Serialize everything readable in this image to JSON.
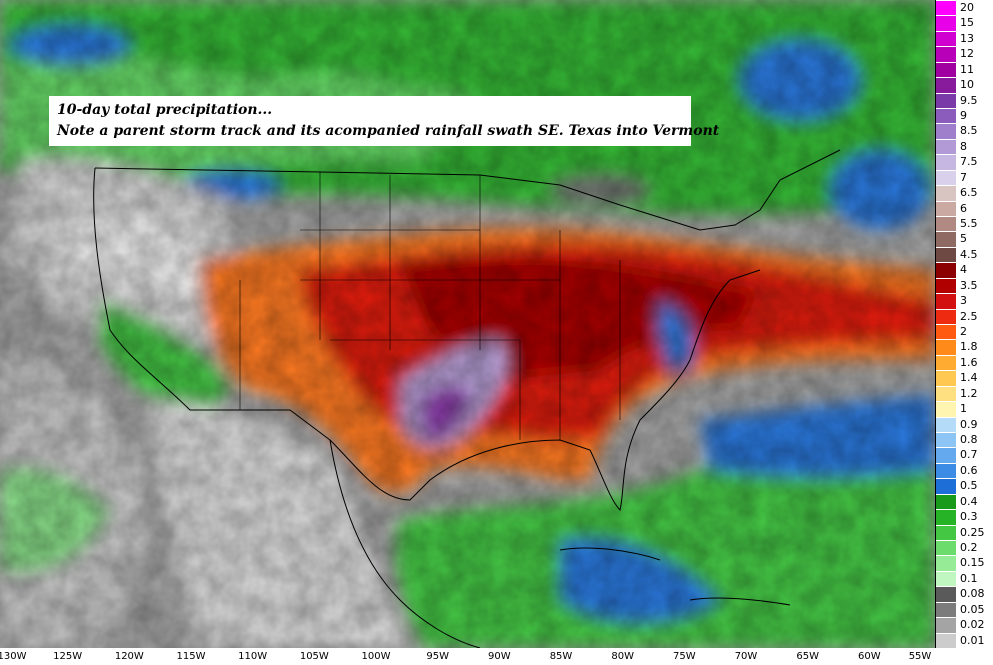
{
  "annotation": {
    "line1": "10-day total precipitation...",
    "line2": "Note a parent storm track and its acompanied rainfall swath SE. Texas into Vermont"
  },
  "colorbar": {
    "levels": [
      {
        "label": "20",
        "color": "#ff00ff"
      },
      {
        "label": "15",
        "color": "#e800e8"
      },
      {
        "label": "13",
        "color": "#d000d0"
      },
      {
        "label": "12",
        "color": "#b800b8"
      },
      {
        "label": "11",
        "color": "#a000a0"
      },
      {
        "label": "10",
        "color": "#881a9c"
      },
      {
        "label": "9.5",
        "color": "#7a3aa8"
      },
      {
        "label": "9",
        "color": "#8c5cbc"
      },
      {
        "label": "8.5",
        "color": "#9f7ecb"
      },
      {
        "label": "8",
        "color": "#b19ad6"
      },
      {
        "label": "7.5",
        "color": "#c5b7e2"
      },
      {
        "label": "7",
        "color": "#d9d0ec"
      },
      {
        "label": "6.5",
        "color": "#d8c4c0"
      },
      {
        "label": "6",
        "color": "#c9a9a2"
      },
      {
        "label": "5.5",
        "color": "#b08a82"
      },
      {
        "label": "5",
        "color": "#8e6a62"
      },
      {
        "label": "4.5",
        "color": "#6e4842"
      },
      {
        "label": "4",
        "color": "#8b0000"
      },
      {
        "label": "3.5",
        "color": "#b00000"
      },
      {
        "label": "3",
        "color": "#d21010"
      },
      {
        "label": "2.5",
        "color": "#ee2a10"
      },
      {
        "label": "2",
        "color": "#ff5a10"
      },
      {
        "label": "1.8",
        "color": "#ff8a1a"
      },
      {
        "label": "1.6",
        "color": "#ffaa30"
      },
      {
        "label": "1.4",
        "color": "#ffc850"
      },
      {
        "label": "1.2",
        "color": "#ffe080"
      },
      {
        "label": "1",
        "color": "#fff4b0"
      },
      {
        "label": "0.9",
        "color": "#b4dcf8"
      },
      {
        "label": "0.8",
        "color": "#8cc4f4"
      },
      {
        "label": "0.7",
        "color": "#64a8ee"
      },
      {
        "label": "0.6",
        "color": "#3c8ce6"
      },
      {
        "label": "0.5",
        "color": "#1e6ed8"
      },
      {
        "label": "0.4",
        "color": "#1a9a1a"
      },
      {
        "label": "0.3",
        "color": "#26b426"
      },
      {
        "label": "0.25",
        "color": "#44c844"
      },
      {
        "label": "0.2",
        "color": "#6cdc6c"
      },
      {
        "label": "0.15",
        "color": "#96ec96"
      },
      {
        "label": "0.1",
        "color": "#c0f6c0"
      },
      {
        "label": "0.08",
        "color": "#5a5a5a"
      },
      {
        "label": "0.05",
        "color": "#7c7c7c"
      },
      {
        "label": "0.02",
        "color": "#a4a4a4"
      },
      {
        "label": "0.01",
        "color": "#cccccc"
      }
    ]
  },
  "x_axis": {
    "ticks": [
      {
        "label": "130W",
        "lon": -130
      },
      {
        "label": "125W",
        "lon": -125
      },
      {
        "label": "120W",
        "lon": -120
      },
      {
        "label": "115W",
        "lon": -115
      },
      {
        "label": "110W",
        "lon": -110
      },
      {
        "label": "105W",
        "lon": -105
      },
      {
        "label": "100W",
        "lon": -100
      },
      {
        "label": "95W",
        "lon": -95
      },
      {
        "label": "90W",
        "lon": -90
      },
      {
        "label": "85W",
        "lon": -85
      },
      {
        "label": "80W",
        "lon": -80
      },
      {
        "label": "75W",
        "lon": -75
      },
      {
        "label": "70W",
        "lon": -70
      },
      {
        "label": "65W",
        "lon": -65
      },
      {
        "label": "60W",
        "lon": -60
      },
      {
        "label": "55W",
        "lon": -55
      }
    ]
  }
}
